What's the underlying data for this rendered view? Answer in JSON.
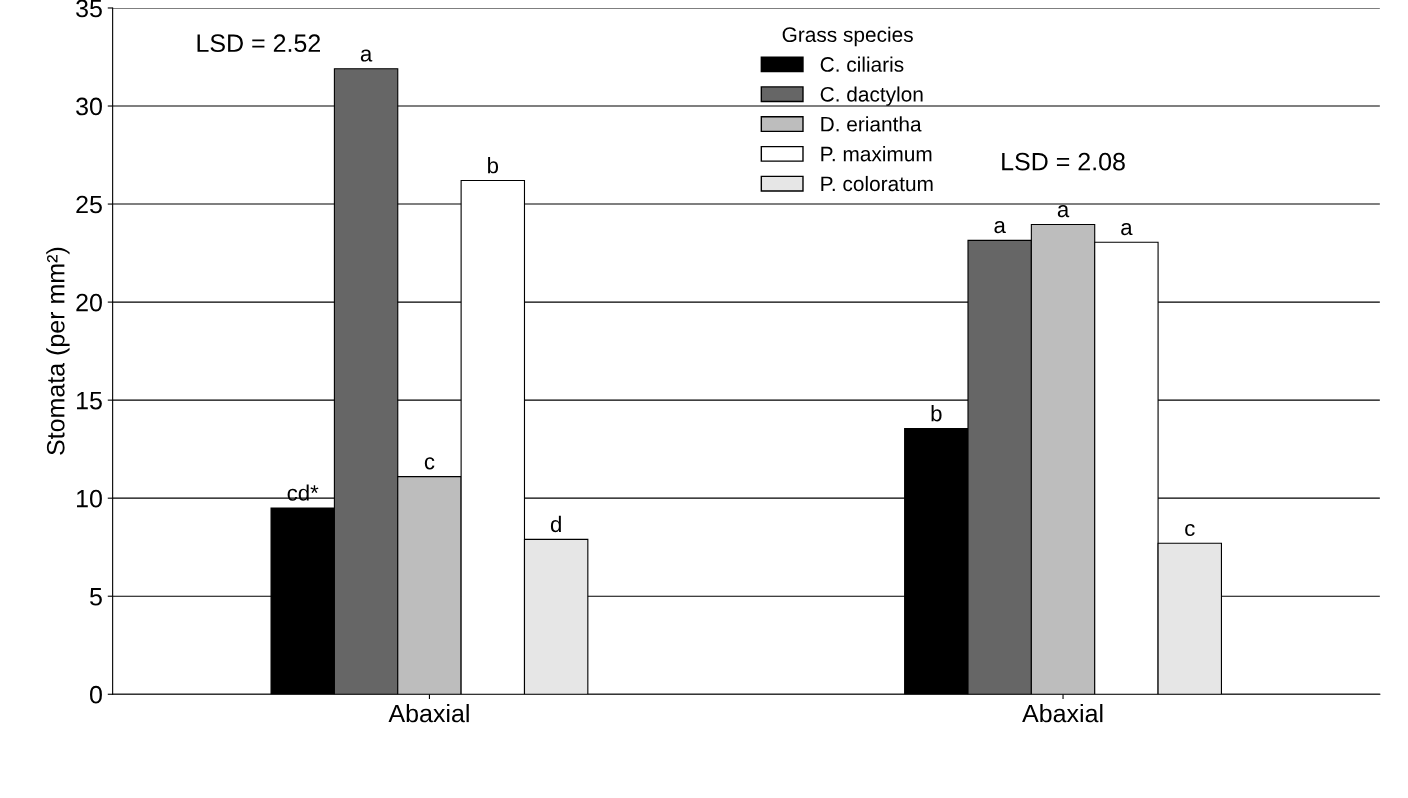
{
  "chart_data": {
    "type": "bar",
    "ylabel": "Stomata (per mm²)",
    "legend_title": "Grass species",
    "categories": [
      "Abaxial",
      "Abaxial"
    ],
    "series": [
      {
        "name": "C. ciliaris",
        "color": "#000000",
        "values": [
          9.5,
          13.55
        ],
        "value_labels": [
          "cd*",
          "b"
        ]
      },
      {
        "name": "C. dactylon",
        "color": "#666666",
        "values": [
          31.9,
          23.15
        ],
        "value_labels": [
          "a",
          "a"
        ]
      },
      {
        "name": "D. eriantha",
        "color": "#bdbdbd",
        "values": [
          11.1,
          23.96
        ],
        "value_labels": [
          "c",
          "a"
        ]
      },
      {
        "name": "P. maximum",
        "color": "#ffffff",
        "values": [
          26.2,
          23.05
        ],
        "value_labels": [
          "b",
          "a"
        ]
      },
      {
        "name": "P. coloratum",
        "color": "#e6e6e6",
        "values": [
          7.9,
          7.7
        ],
        "value_labels": [
          "d",
          "c"
        ]
      }
    ],
    "ylim": [
      0,
      35
    ],
    "yticks": [
      0,
      5,
      10,
      15,
      20,
      25,
      30,
      35
    ],
    "grid": "y",
    "legend": "top",
    "annotations": [
      "LSD = 2.52",
      "LSD = 2.08"
    ]
  }
}
